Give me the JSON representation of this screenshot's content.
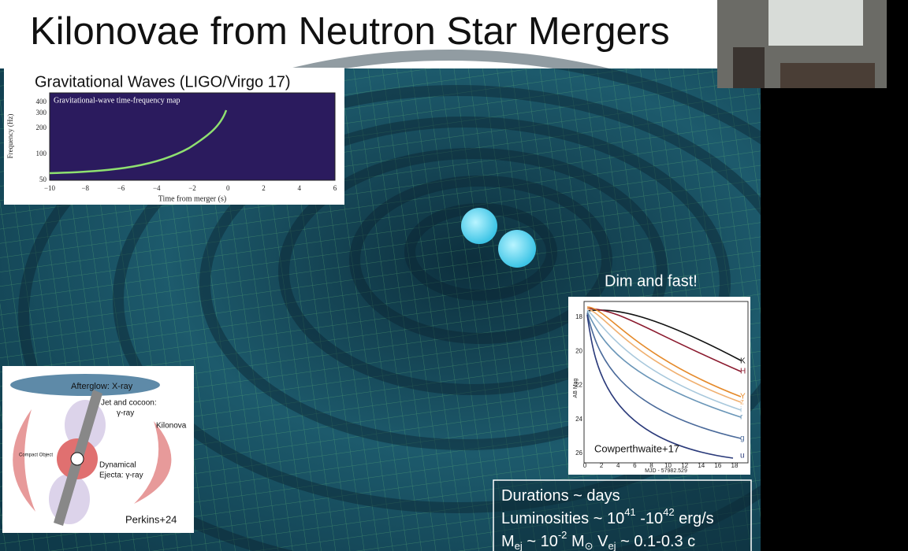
{
  "title": "Kilonovae from Neutron Star Mergers",
  "gw_panel": {
    "heading": "Gravitational Waves (LIGO/Virgo 17)",
    "plot_title": "Gravitational-wave time-frequency map",
    "y_label": "Frequency (Hz)",
    "y_ticks": [
      "400",
      "300",
      "200",
      "100",
      "50"
    ],
    "x_label": "Time from merger (s)",
    "x_ticks": [
      "−10",
      "−8",
      "−6",
      "−4",
      "−2",
      "0",
      "2",
      "4",
      "6"
    ]
  },
  "lightcurve_panel": {
    "heading": "Dim and fast!",
    "y_label": "AB Mag",
    "y_ticks": [
      "18",
      "20",
      "22",
      "24",
      "26"
    ],
    "x_label": "MJD - 57982.529",
    "x_ticks": [
      "0",
      "2",
      "4",
      "6",
      "8",
      "10",
      "12",
      "14",
      "16",
      "18"
    ],
    "bands": [
      "K",
      "H",
      "Y",
      "z",
      "i",
      "r",
      "g",
      "u"
    ],
    "credit": "Cowperthwaite+17"
  },
  "diagram_panel": {
    "afterglow": "Afterglow: X-ray",
    "jet_line1": "Jet and cocoon:",
    "jet_line2": "γ-ray",
    "kilonova": "Kilonova",
    "compact_object": "Compact Object",
    "ejecta_line1": "Dynamical",
    "ejecta_line2": "Ejecta: γ-ray",
    "credit": "Perkins+24"
  },
  "facts": [
    [
      "Durations ~ days"
    ],
    [
      "Luminosities ~ 10",
      "41",
      " -10",
      "42",
      " erg/s"
    ],
    [
      "M",
      "ej",
      " ~ 10",
      "-2",
      " M",
      "⊙",
      "  V",
      "ej",
      " ~ 0.1-0.3 c"
    ]
  ]
}
